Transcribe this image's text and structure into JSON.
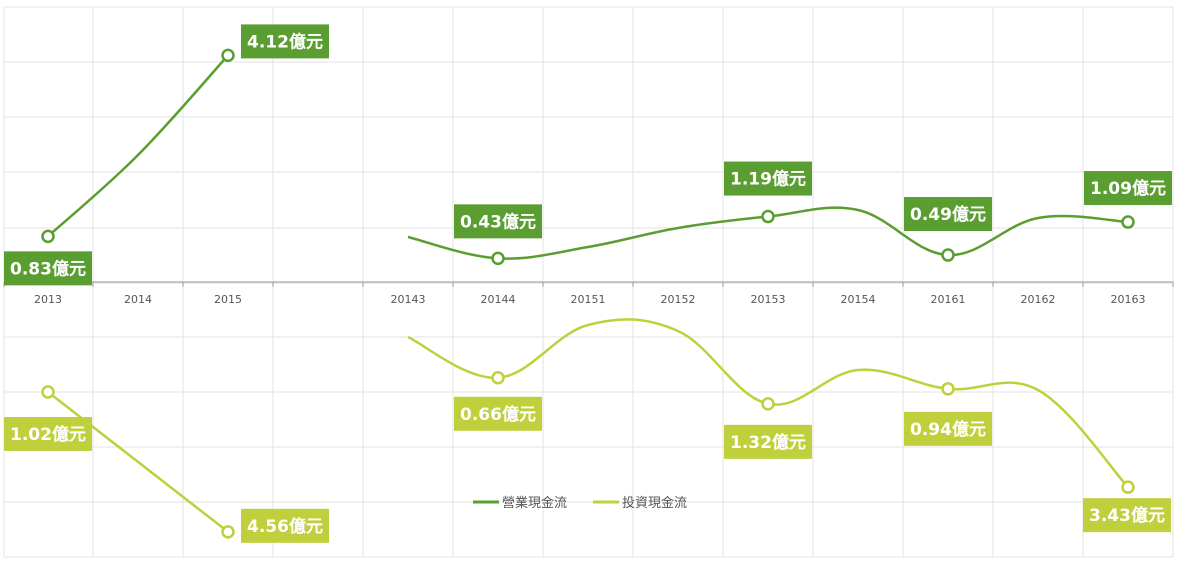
{
  "chart_data": {
    "type": "line",
    "categories": [
      "2013",
      "2014",
      "2015",
      "",
      "20143",
      "20144",
      "20151",
      "20152",
      "20153",
      "20154",
      "20161",
      "20162",
      "20163"
    ],
    "series": [
      {
        "name": "營業現金流",
        "color": "#5a9e32",
        "values": [
          0.83,
          null,
          4.12,
          null,
          null,
          0.43,
          null,
          null,
          1.19,
          null,
          0.49,
          null,
          1.09
        ],
        "labels": [
          "0.83億元",
          null,
          "4.12億元",
          null,
          null,
          "0.43億元",
          null,
          null,
          "1.19億元",
          null,
          "0.49億元",
          null,
          "1.09億元"
        ]
      },
      {
        "name": "投資現金流",
        "color": "#bfd03c",
        "values": [
          1.02,
          null,
          4.56,
          null,
          null,
          0.66,
          null,
          null,
          1.32,
          null,
          0.94,
          null,
          3.43
        ],
        "labels": [
          "1.02億元",
          null,
          "4.56億元",
          null,
          null,
          "0.66億元",
          null,
          null,
          "1.32億元",
          null,
          "0.94億元",
          null,
          "3.43億元"
        ]
      }
    ],
    "legend_position": "bottom-center",
    "grid": true
  }
}
